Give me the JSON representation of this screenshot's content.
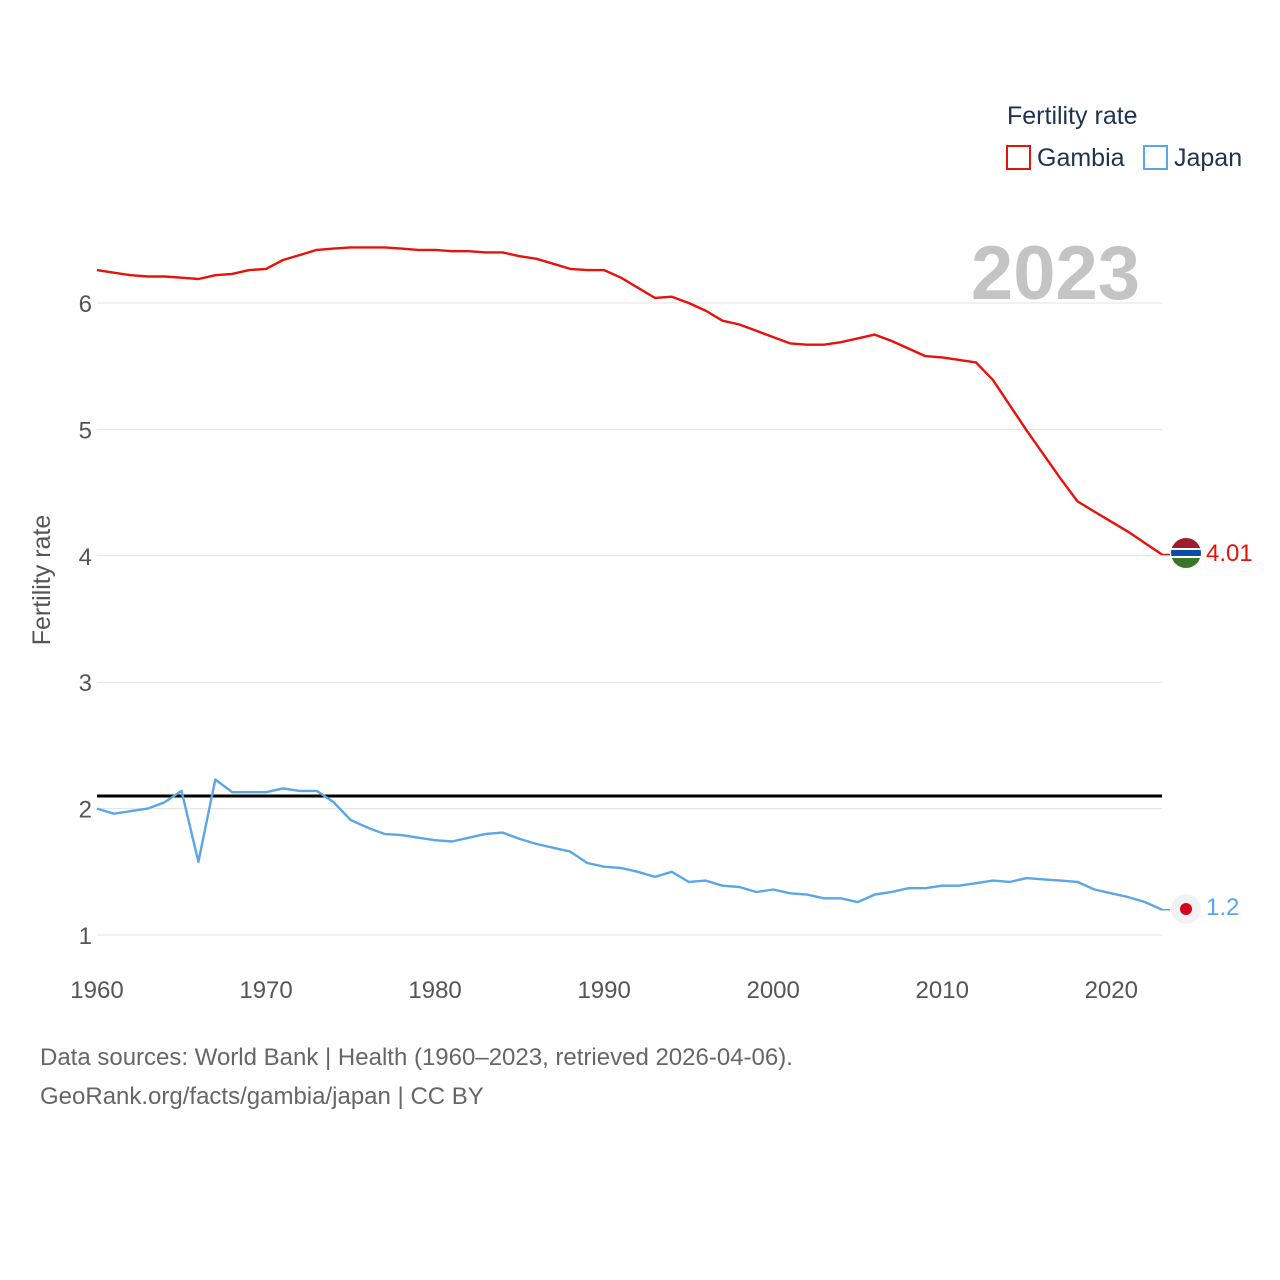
{
  "chart_data": {
    "type": "line",
    "ylabel": "Fertility rate",
    "legend_title": "Fertility rate",
    "year_label": "2023",
    "xlim": [
      1960,
      2023
    ],
    "ylim": [
      0.8,
      6.9
    ],
    "x_ticks": [
      1960,
      1970,
      1980,
      1990,
      2000,
      2010,
      2020
    ],
    "y_ticks": [
      1,
      2,
      3,
      4,
      5,
      6
    ],
    "reference_line": 2.1,
    "colors": {
      "Gambia": "#e8120c",
      "Japan": "#5ba6e6",
      "reference": "#000000"
    },
    "series": [
      {
        "name": "Gambia",
        "end_label": "4.01",
        "x": [
          1960,
          1961,
          1962,
          1963,
          1964,
          1965,
          1966,
          1967,
          1968,
          1969,
          1970,
          1971,
          1972,
          1973,
          1974,
          1975,
          1976,
          1977,
          1978,
          1979,
          1980,
          1981,
          1982,
          1983,
          1984,
          1985,
          1986,
          1987,
          1988,
          1989,
          1990,
          1991,
          1992,
          1993,
          1994,
          1995,
          1996,
          1997,
          1998,
          1999,
          2000,
          2001,
          2002,
          2003,
          2004,
          2005,
          2006,
          2007,
          2008,
          2009,
          2010,
          2011,
          2012,
          2013,
          2014,
          2015,
          2016,
          2017,
          2018,
          2019,
          2020,
          2021,
          2022,
          2023
        ],
        "values": [
          6.26,
          6.24,
          6.22,
          6.21,
          6.21,
          6.2,
          6.19,
          6.22,
          6.23,
          6.26,
          6.27,
          6.34,
          6.38,
          6.42,
          6.43,
          6.44,
          6.44,
          6.44,
          6.43,
          6.42,
          6.42,
          6.41,
          6.41,
          6.4,
          6.4,
          6.37,
          6.35,
          6.31,
          6.27,
          6.26,
          6.26,
          6.2,
          6.12,
          6.04,
          6.05,
          6.0,
          5.94,
          5.86,
          5.83,
          5.78,
          5.73,
          5.68,
          5.67,
          5.67,
          5.69,
          5.72,
          5.75,
          5.7,
          5.64,
          5.58,
          5.57,
          5.55,
          5.53,
          5.39,
          5.19,
          4.99,
          4.8,
          4.61,
          4.43,
          4.35,
          4.27,
          4.19,
          4.1,
          4.01
        ]
      },
      {
        "name": "Japan",
        "end_label": "1.2",
        "x": [
          1960,
          1961,
          1962,
          1963,
          1964,
          1965,
          1966,
          1967,
          1968,
          1969,
          1970,
          1971,
          1972,
          1973,
          1974,
          1975,
          1976,
          1977,
          1978,
          1979,
          1980,
          1981,
          1982,
          1983,
          1984,
          1985,
          1986,
          1987,
          1988,
          1989,
          1990,
          1991,
          1992,
          1993,
          1994,
          1995,
          1996,
          1997,
          1998,
          1999,
          2000,
          2001,
          2002,
          2003,
          2004,
          2005,
          2006,
          2007,
          2008,
          2009,
          2010,
          2011,
          2012,
          2013,
          2014,
          2015,
          2016,
          2017,
          2018,
          2019,
          2020,
          2021,
          2022,
          2023
        ],
        "values": [
          2.0,
          1.96,
          1.98,
          2.0,
          2.05,
          2.14,
          1.58,
          2.23,
          2.13,
          2.13,
          2.13,
          2.16,
          2.14,
          2.14,
          2.05,
          1.91,
          1.85,
          1.8,
          1.79,
          1.77,
          1.75,
          1.74,
          1.77,
          1.8,
          1.81,
          1.76,
          1.72,
          1.69,
          1.66,
          1.57,
          1.54,
          1.53,
          1.5,
          1.46,
          1.5,
          1.42,
          1.43,
          1.39,
          1.38,
          1.34,
          1.36,
          1.33,
          1.32,
          1.29,
          1.29,
          1.26,
          1.32,
          1.34,
          1.37,
          1.37,
          1.39,
          1.39,
          1.41,
          1.43,
          1.42,
          1.45,
          1.44,
          1.43,
          1.42,
          1.36,
          1.33,
          1.3,
          1.26,
          1.2
        ]
      }
    ]
  },
  "footer": {
    "source_line": "Data sources: World Bank | Health (1960–2023, retrieved 2026-04-06).",
    "url_line": "GeoRank.org/facts/gambia/japan | CC BY"
  }
}
